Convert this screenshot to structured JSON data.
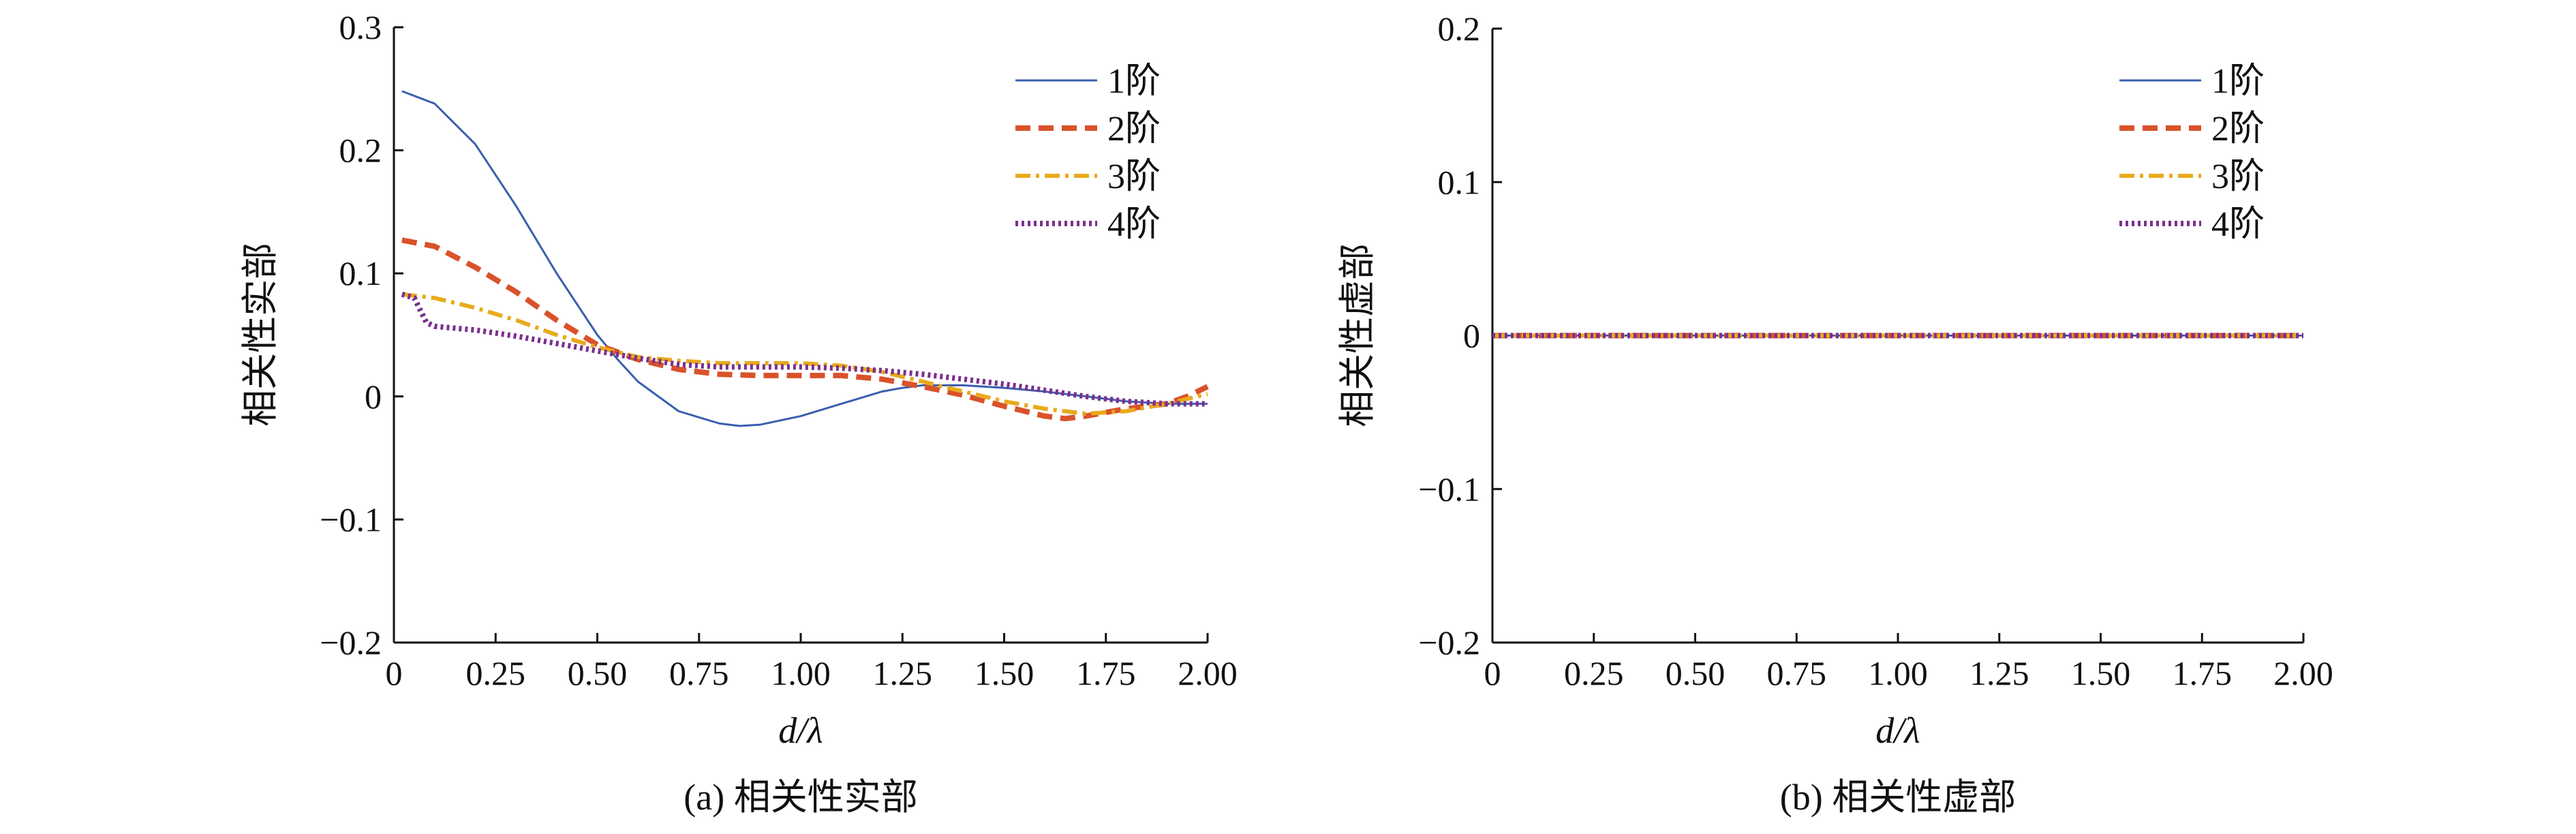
{
  "colors": {
    "series1": "#3a5fae",
    "series2": "#d9522a",
    "series3": "#e8aa1c",
    "series4": "#7b2f8e"
  },
  "chart_data": [
    {
      "type": "line",
      "caption": "(a) 相关性实部",
      "xlabel": "d/λ",
      "ylabel": "相关性实部",
      "xlim": [
        0,
        2.0
      ],
      "ylim": [
        -0.2,
        0.3
      ],
      "xticks": [
        0,
        0.25,
        0.5,
        0.75,
        1.0,
        1.25,
        1.5,
        1.75,
        2.0
      ],
      "xticklabels": [
        "0",
        "0.25",
        "0.50",
        "0.75",
        "1.00",
        "1.25",
        "1.50",
        "1.75",
        "2.00"
      ],
      "yticks": [
        -0.2,
        -0.1,
        0,
        0.1,
        0.2,
        0.3
      ],
      "yticklabels": [
        "−0.2",
        "−0.1",
        "0",
        "0.1",
        "0.2",
        "0.3"
      ],
      "legend_position": "top-right",
      "grid": false,
      "series": [
        {
          "name": "1阶",
          "style": "solid",
          "x": [
            0.02,
            0.1,
            0.2,
            0.3,
            0.4,
            0.5,
            0.55,
            0.6,
            0.7,
            0.8,
            0.85,
            0.9,
            1.0,
            1.1,
            1.2,
            1.25,
            1.3,
            1.4,
            1.5,
            1.6,
            1.7,
            1.8,
            1.9,
            2.0
          ],
          "y": [
            0.248,
            0.238,
            0.205,
            0.155,
            0.1,
            0.05,
            0.03,
            0.012,
            -0.012,
            -0.022,
            -0.024,
            -0.023,
            -0.016,
            -0.006,
            0.004,
            0.007,
            0.009,
            0.009,
            0.007,
            0.004,
            0.0,
            -0.004,
            -0.006,
            -0.006
          ]
        },
        {
          "name": "2阶",
          "style": "dashed",
          "x": [
            0.02,
            0.1,
            0.2,
            0.3,
            0.4,
            0.5,
            0.55,
            0.6,
            0.7,
            0.8,
            0.9,
            1.0,
            1.1,
            1.2,
            1.3,
            1.4,
            1.5,
            1.6,
            1.65,
            1.7,
            1.8,
            1.9,
            1.95,
            2.0
          ],
          "y": [
            0.127,
            0.122,
            0.105,
            0.085,
            0.062,
            0.042,
            0.036,
            0.03,
            0.022,
            0.018,
            0.017,
            0.017,
            0.017,
            0.014,
            0.008,
            0.001,
            -0.008,
            -0.016,
            -0.018,
            -0.016,
            -0.01,
            -0.006,
            0.0,
            0.008
          ]
        },
        {
          "name": "3阶",
          "style": "dashdot",
          "x": [
            0.02,
            0.1,
            0.2,
            0.3,
            0.4,
            0.5,
            0.55,
            0.6,
            0.7,
            0.8,
            0.9,
            1.0,
            1.1,
            1.2,
            1.3,
            1.4,
            1.5,
            1.6,
            1.7,
            1.8,
            1.9,
            2.0
          ],
          "y": [
            0.083,
            0.08,
            0.072,
            0.062,
            0.05,
            0.04,
            0.036,
            0.032,
            0.029,
            0.027,
            0.027,
            0.027,
            0.025,
            0.02,
            0.012,
            0.004,
            -0.004,
            -0.01,
            -0.014,
            -0.012,
            -0.006,
            0.002
          ]
        },
        {
          "name": "4阶",
          "style": "dotted",
          "x": [
            0.02,
            0.05,
            0.08,
            0.1,
            0.2,
            0.3,
            0.4,
            0.5,
            0.6,
            0.7,
            0.8,
            0.9,
            1.0,
            1.1,
            1.2,
            1.3,
            1.4,
            1.5,
            1.6,
            1.7,
            1.8,
            1.9,
            2.0
          ],
          "y": [
            0.083,
            0.08,
            0.06,
            0.057,
            0.054,
            0.049,
            0.043,
            0.037,
            0.031,
            0.026,
            0.024,
            0.024,
            0.024,
            0.023,
            0.021,
            0.018,
            0.014,
            0.01,
            0.005,
            0.0,
            -0.004,
            -0.006,
            -0.006
          ]
        }
      ]
    },
    {
      "type": "line",
      "caption": "(b) 相关性虚部",
      "xlabel": "d/λ",
      "ylabel": "相关性虚部",
      "xlim": [
        0,
        2.0
      ],
      "ylim": [
        -0.2,
        0.2
      ],
      "xticks": [
        0,
        0.25,
        0.5,
        0.75,
        1.0,
        1.25,
        1.5,
        1.75,
        2.0
      ],
      "xticklabels": [
        "0",
        "0.25",
        "0.50",
        "0.75",
        "1.00",
        "1.25",
        "1.50",
        "1.75",
        "2.00"
      ],
      "yticks": [
        -0.2,
        -0.1,
        0,
        0.1,
        0.2
      ],
      "yticklabels": [
        "−0.2",
        "−0.1",
        "0",
        "0.1",
        "0.2"
      ],
      "legend_position": "top-right",
      "grid": false,
      "series": [
        {
          "name": "1阶",
          "style": "solid",
          "x": [
            0,
            2.0
          ],
          "y": [
            0,
            0
          ]
        },
        {
          "name": "2阶",
          "style": "dashed",
          "x": [
            0,
            2.0
          ],
          "y": [
            0,
            0
          ]
        },
        {
          "name": "3阶",
          "style": "dashdot",
          "x": [
            0,
            2.0
          ],
          "y": [
            0,
            0
          ]
        },
        {
          "name": "4阶",
          "style": "dotted",
          "x": [
            0,
            2.0
          ],
          "y": [
            0,
            0
          ]
        }
      ]
    }
  ]
}
